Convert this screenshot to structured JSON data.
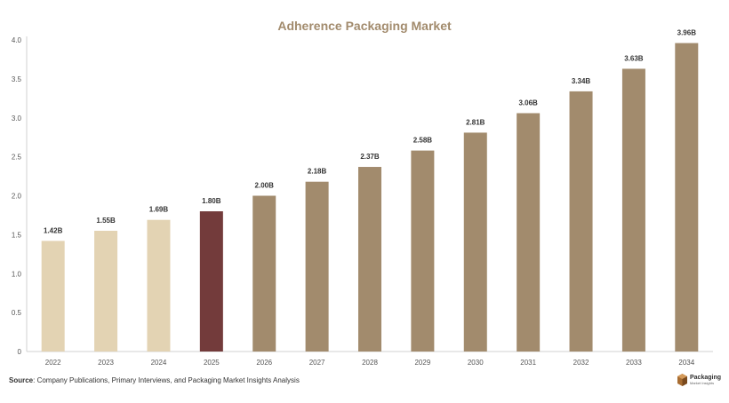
{
  "chart_data": {
    "type": "bar",
    "title": "Adherence Packaging Market",
    "xlabel": "",
    "ylabel": "",
    "categories": [
      "2022",
      "2023",
      "2024",
      "2025",
      "2026",
      "2027",
      "2028",
      "2029",
      "2030",
      "2031",
      "2032",
      "2033",
      "2034"
    ],
    "values": [
      1.42,
      1.55,
      1.69,
      1.8,
      2.0,
      2.18,
      2.37,
      2.58,
      2.81,
      3.06,
      3.34,
      3.63,
      3.96
    ],
    "data_labels": [
      "1.42B",
      "1.55B",
      "1.69B",
      "1.80B",
      "2.00B",
      "2.18B",
      "2.37B",
      "2.58B",
      "2.81B",
      "3.06B",
      "3.34B",
      "3.63B",
      "3.96B"
    ],
    "bar_colors": [
      "#e3d3b3",
      "#e3d3b3",
      "#e3d3b3",
      "#733b3b",
      "#a28b6d",
      "#a28b6d",
      "#a28b6d",
      "#a28b6d",
      "#a28b6d",
      "#a28b6d",
      "#a28b6d",
      "#a28b6d",
      "#a28b6d"
    ],
    "ylim": [
      0,
      4.0
    ],
    "yticks": [
      "0",
      "0.5",
      "1.0",
      "1.5",
      "2.0",
      "2.5",
      "3.0",
      "3.5",
      "4.0"
    ],
    "ytick_values": [
      0,
      0.5,
      1.0,
      1.5,
      2.0,
      2.5,
      3.0,
      3.5,
      4.0
    ],
    "grid": false,
    "title_color": "#a28b6d"
  },
  "source": {
    "label": "Source",
    "text": ": Company Publications, Primary Interviews, and Packaging Market Insights Analysis"
  },
  "brand": {
    "name": "Packaging",
    "tagline": "Market Insights",
    "color": "#8a5a2b"
  }
}
